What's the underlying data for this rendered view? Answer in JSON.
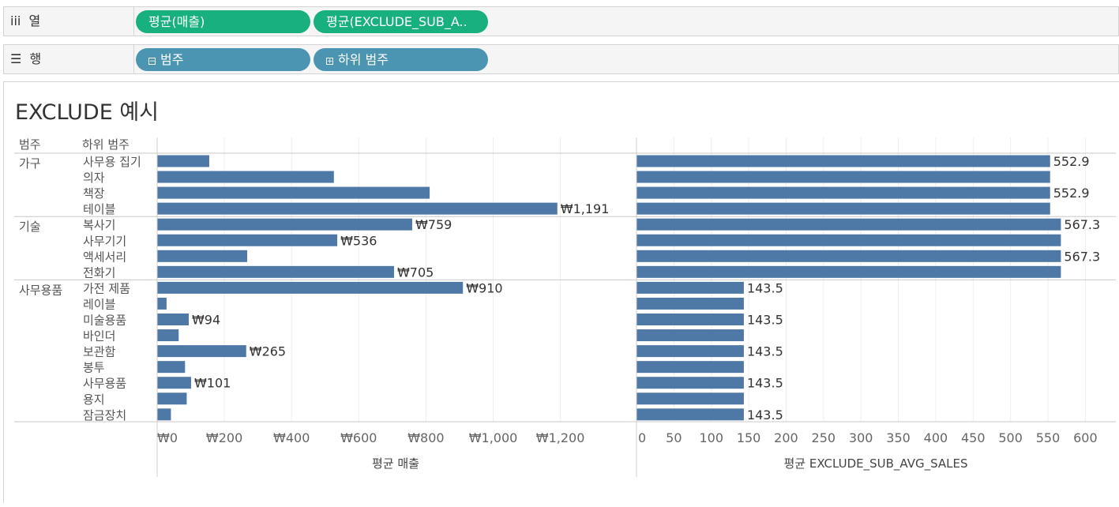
{
  "shelves": {
    "columns": {
      "icon": "iii",
      "label": "열",
      "pills": [
        "평균(매출)",
        "평균(EXCLUDE_SUB_A.."
      ]
    },
    "rows": {
      "icon": "☰",
      "label": "행",
      "pills": [
        {
          "toggle": "⊟",
          "label": "범주"
        },
        {
          "toggle": "⊞",
          "label": "하위 범주"
        }
      ]
    }
  },
  "viz": {
    "title": "EXCLUDE 예시",
    "header_category": "범주",
    "header_subcategory": "하위 범주"
  },
  "chart_data": [
    {
      "type": "bar",
      "orientation": "horizontal",
      "xlabel": "평균 매출",
      "xlim": [
        0,
        1380
      ],
      "ticks": [
        "₩0",
        "₩200",
        "₩400",
        "₩600",
        "₩800",
        "₩1,000",
        "₩1,200"
      ],
      "tick_values": [
        0,
        200,
        400,
        600,
        800,
        1000,
        1200
      ],
      "groups": [
        {
          "category": "가구",
          "rows": [
            {
              "sub": "사무용 집기",
              "value": 155,
              "label": ""
            },
            {
              "sub": "의자",
              "value": 526,
              "label": ""
            },
            {
              "sub": "책장",
              "value": 811,
              "label": ""
            },
            {
              "sub": "테이블",
              "value": 1191,
              "label": "₩1,191"
            }
          ]
        },
        {
          "category": "기술",
          "rows": [
            {
              "sub": "복사기",
              "value": 759,
              "label": "₩759"
            },
            {
              "sub": "사무기기",
              "value": 536,
              "label": "₩536"
            },
            {
              "sub": "액세서리",
              "value": 268,
              "label": ""
            },
            {
              "sub": "전화기",
              "value": 705,
              "label": "₩705"
            }
          ]
        },
        {
          "category": "사무용품",
          "rows": [
            {
              "sub": "가전 제품",
              "value": 910,
              "label": "₩910"
            },
            {
              "sub": "레이블",
              "value": 28,
              "label": ""
            },
            {
              "sub": "미술용품",
              "value": 94,
              "label": "₩94"
            },
            {
              "sub": "바인더",
              "value": 64,
              "label": ""
            },
            {
              "sub": "보관함",
              "value": 265,
              "label": "₩265"
            },
            {
              "sub": "봉투",
              "value": 83,
              "label": ""
            },
            {
              "sub": "사무용품",
              "value": 101,
              "label": "₩101"
            },
            {
              "sub": "용지",
              "value": 88,
              "label": ""
            },
            {
              "sub": "잠금장치",
              "value": 41,
              "label": ""
            }
          ]
        }
      ]
    },
    {
      "type": "bar",
      "orientation": "horizontal",
      "xlabel": "평균 EXCLUDE_SUB_AVG_SALES",
      "xlim": [
        0,
        650
      ],
      "ticks": [
        "0",
        "50",
        "100",
        "150",
        "200",
        "250",
        "300",
        "350",
        "400",
        "450",
        "500",
        "550",
        "600"
      ],
      "tick_values": [
        0,
        50,
        100,
        150,
        200,
        250,
        300,
        350,
        400,
        450,
        500,
        550,
        600
      ],
      "values": [
        552.9,
        552.9,
        552.9,
        552.9,
        567.3,
        567.3,
        567.3,
        567.3,
        143.5,
        143.5,
        143.5,
        143.5,
        143.5,
        143.5,
        143.5,
        143.5,
        143.5
      ],
      "labels": [
        "552.9",
        "",
        "552.9",
        "",
        "567.3",
        "",
        "567.3",
        "",
        "143.5",
        "",
        "143.5",
        "",
        "143.5",
        "",
        "143.5",
        "",
        "143.5"
      ]
    }
  ],
  "colors": {
    "bar": "#4e79a7",
    "pill_green": "#17b07e",
    "pill_blue": "#4b95b3"
  }
}
